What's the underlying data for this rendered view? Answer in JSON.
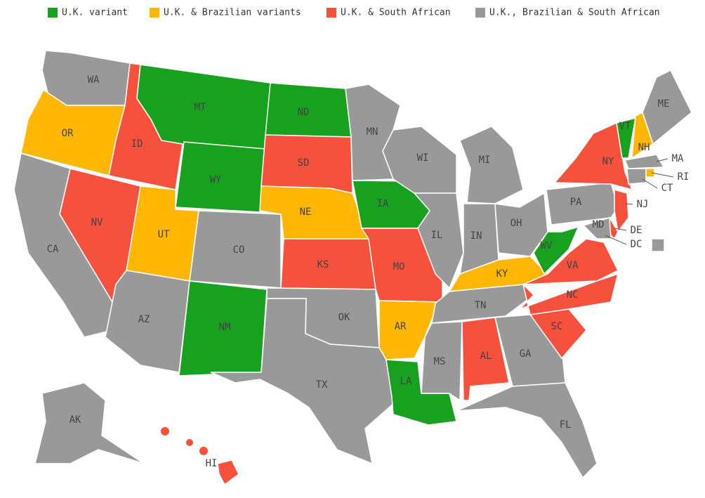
{
  "legend": [
    {
      "label": "U.K. variant",
      "color": "#17a11e"
    },
    {
      "label": "U.K. & Brazilian variants",
      "color": "#ffb703"
    },
    {
      "label": "U.K. & South African",
      "color": "#f5513d"
    },
    {
      "label": "U.K., Brazilian & South African",
      "color": "#999999"
    }
  ],
  "states": [
    {
      "label": "WA",
      "category": 3
    },
    {
      "label": "OR",
      "category": 1
    },
    {
      "label": "ID",
      "category": 2
    },
    {
      "label": "MT",
      "category": 0
    },
    {
      "label": "WY",
      "category": 0
    },
    {
      "label": "ND",
      "category": 0
    },
    {
      "label": "SD",
      "category": 2
    },
    {
      "label": "NE",
      "category": 1
    },
    {
      "label": "CO",
      "category": 3
    },
    {
      "label": "UT",
      "category": 1
    },
    {
      "label": "NV",
      "category": 2
    },
    {
      "label": "CA",
      "category": 3
    },
    {
      "label": "AZ",
      "category": 3
    },
    {
      "label": "NM",
      "category": 0
    },
    {
      "label": "KS",
      "category": 2
    },
    {
      "label": "OK",
      "category": 3
    },
    {
      "label": "TX",
      "category": 3
    },
    {
      "label": "MN",
      "category": 3
    },
    {
      "label": "IA",
      "category": 0
    },
    {
      "label": "MO",
      "category": 2
    },
    {
      "label": "AR",
      "category": 1
    },
    {
      "label": "LA",
      "category": 0
    },
    {
      "label": "WI",
      "category": 3
    },
    {
      "label": "IL",
      "category": 3
    },
    {
      "label": "MI",
      "category": 3
    },
    {
      "label": "IN",
      "category": 3
    },
    {
      "label": "OH",
      "category": 3
    },
    {
      "label": "KY",
      "category": 1
    },
    {
      "label": "TN",
      "category": 3
    },
    {
      "label": "MS",
      "category": 3
    },
    {
      "label": "AL",
      "category": 2
    },
    {
      "label": "GA",
      "category": 3
    },
    {
      "label": "FL",
      "category": 3
    },
    {
      "label": "SC",
      "category": 2
    },
    {
      "label": "NC",
      "category": 2
    },
    {
      "label": "VA",
      "category": 2
    },
    {
      "label": "WV",
      "category": 0
    },
    {
      "label": "PA",
      "category": 3
    },
    {
      "label": "NY",
      "category": 2
    },
    {
      "label": "VT",
      "category": 0
    },
    {
      "label": "NH",
      "category": 1
    },
    {
      "label": "ME",
      "category": 3
    },
    {
      "label": "MA",
      "category": 3
    },
    {
      "label": "CT",
      "category": 3
    },
    {
      "label": "RI",
      "category": 1
    },
    {
      "label": "NJ",
      "category": 2
    },
    {
      "label": "DE",
      "category": 2
    },
    {
      "label": "MD",
      "category": 3
    },
    {
      "label": "DC",
      "category": 3
    },
    {
      "label": "AK",
      "category": 3
    },
    {
      "label": "HI",
      "category": 2
    }
  ]
}
